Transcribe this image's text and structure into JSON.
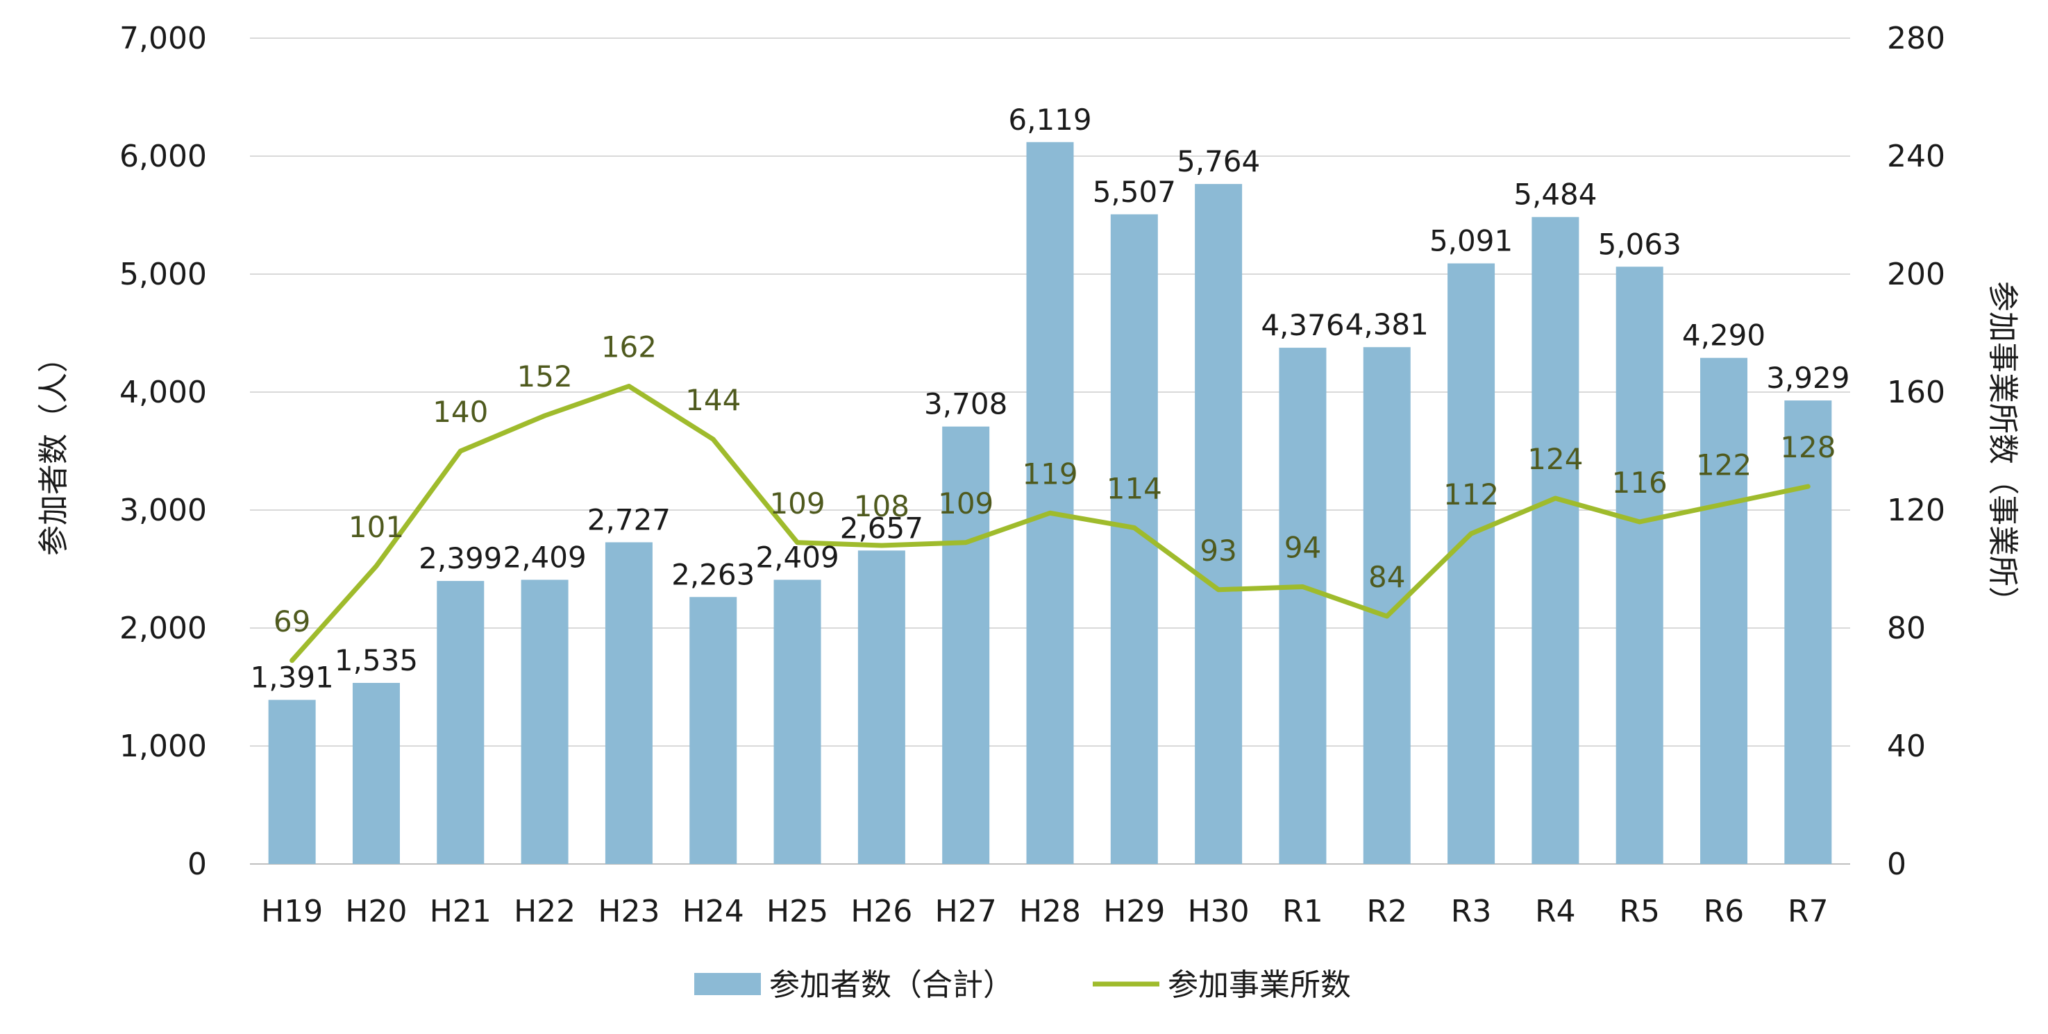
{
  "chart_data": {
    "type": "bar+line",
    "title": "",
    "categories": [
      "H19",
      "H20",
      "H21",
      "H22",
      "H23",
      "H24",
      "H25",
      "H26",
      "H27",
      "H28",
      "H29",
      "H30",
      "R1",
      "R2",
      "R3",
      "R4",
      "R5",
      "R6",
      "R7"
    ],
    "series": [
      {
        "name": "参加者数（合計）",
        "type": "bar",
        "axis": "left",
        "color": "#8cbad5",
        "values": [
          1391,
          1535,
          2399,
          2409,
          2727,
          2263,
          2409,
          2657,
          3708,
          6119,
          5507,
          5764,
          4376,
          4381,
          5091,
          5484,
          5063,
          4290,
          3929
        ],
        "labels": [
          "1,391",
          "1,535",
          "2,399",
          "2,409",
          "2,727",
          "2,263",
          "2,409",
          "2,657",
          "3,708",
          "6,119",
          "5,507",
          "5,764",
          "4,376",
          "4,381",
          "5,091",
          "5,484",
          "5,063",
          "4,290",
          "3,929"
        ]
      },
      {
        "name": "参加事業所数",
        "type": "line",
        "axis": "right",
        "color": "#9fbb2c",
        "label_color": "#4f5a1e",
        "values": [
          69,
          101,
          140,
          152,
          162,
          144,
          109,
          108,
          109,
          119,
          114,
          93,
          94,
          84,
          112,
          124,
          116,
          122,
          128
        ],
        "labels": [
          "69",
          "101",
          "140",
          "152",
          "162",
          "144",
          "109",
          "108",
          "109",
          "119",
          "114",
          "93",
          "94",
          "84",
          "112",
          "124",
          "116",
          "122",
          "128"
        ]
      }
    ],
    "y_left": {
      "label": "参加者数（人）",
      "lim": [
        0,
        7000
      ],
      "ticks": [
        0,
        1000,
        2000,
        3000,
        4000,
        5000,
        6000,
        7000
      ],
      "tick_labels": [
        "0",
        "1,000",
        "2,000",
        "3,000",
        "4,000",
        "5,000",
        "6,000",
        "7,000"
      ]
    },
    "y_right": {
      "label": "参加事業所数（事業所）",
      "lim": [
        0,
        280
      ],
      "ticks": [
        0,
        40,
        80,
        120,
        160,
        200,
        240,
        280
      ],
      "tick_labels": [
        "0",
        "40",
        "80",
        "120",
        "160",
        "200",
        "240",
        "280"
      ]
    },
    "grid": true,
    "grid_color": "#d9d9d9",
    "legend_position": "bottom-center"
  }
}
